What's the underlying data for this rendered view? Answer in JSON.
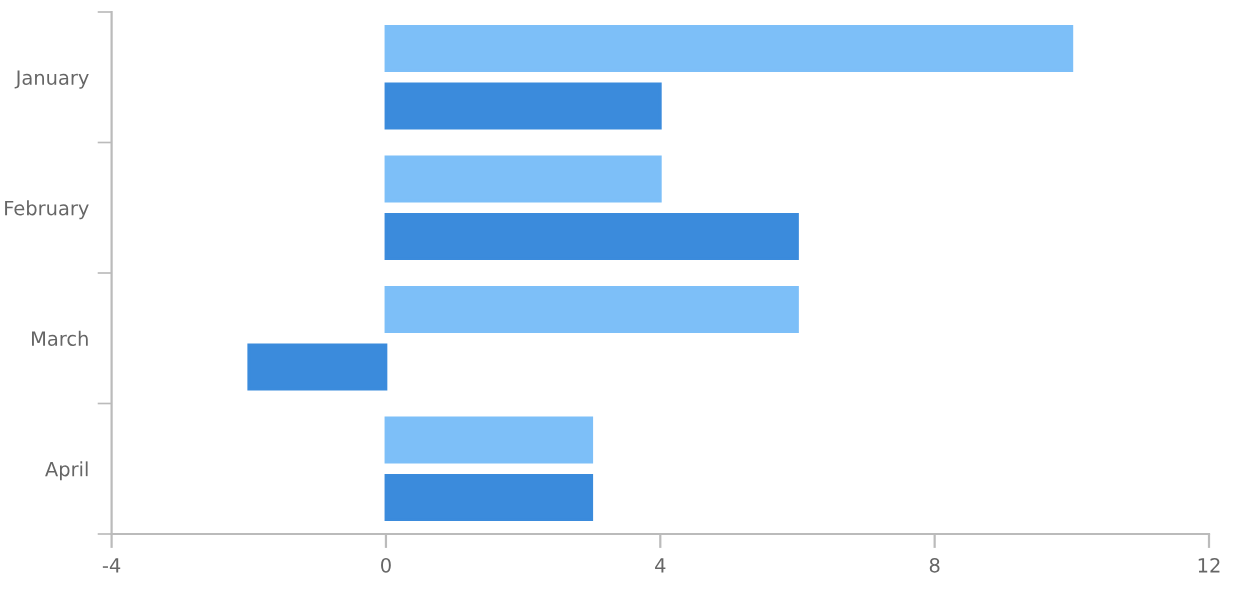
{
  "chart_data": {
    "type": "bar",
    "orientation": "horizontal",
    "categories": [
      "January",
      "February",
      "March",
      "April"
    ],
    "series": [
      {
        "color": "#7dbff8",
        "values": [
          10,
          4,
          6,
          3
        ]
      },
      {
        "color": "#3b8bdc",
        "values": [
          4,
          6,
          -2,
          3
        ]
      }
    ],
    "xlim": [
      -4,
      12
    ],
    "xticks": [
      -4,
      0,
      4,
      8,
      12
    ],
    "grid": false
  }
}
